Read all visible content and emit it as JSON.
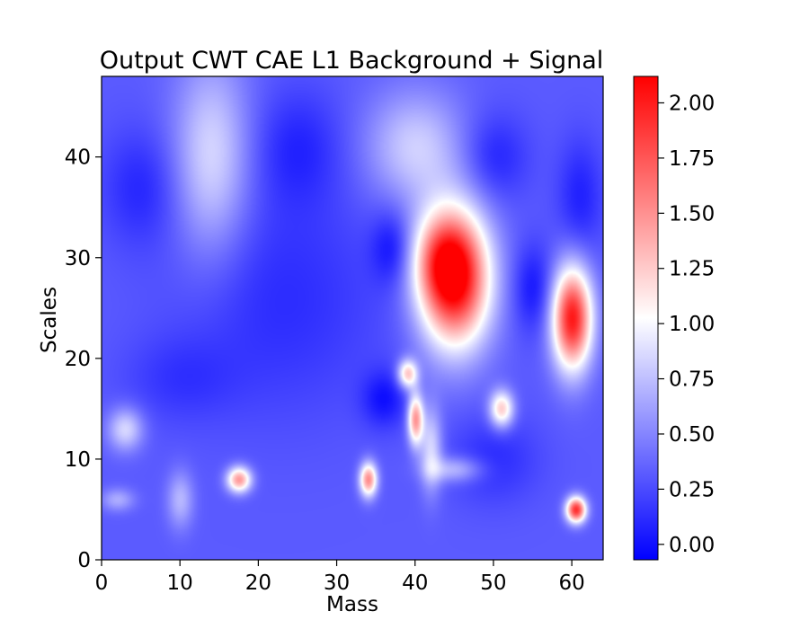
{
  "chart_data": {
    "type": "heatmap",
    "title": "Output CWT CAE L1 Background + Signal",
    "xlabel": "Mass",
    "ylabel": "Scales",
    "xlim": [
      0,
      64
    ],
    "ylim": [
      0,
      48
    ],
    "x_ticks": [
      0,
      10,
      20,
      30,
      40,
      50,
      60
    ],
    "y_ticks": [
      0,
      10,
      20,
      30,
      40
    ],
    "colormap": "bwr",
    "colormap_stops": [
      "#0000ff",
      "#ffffff",
      "#ff0000"
    ],
    "color_range": [
      -0.07,
      2.12
    ],
    "colorbar_ticks": [
      "0.00",
      "0.25",
      "0.50",
      "0.75",
      "1.00",
      "1.25",
      "1.50",
      "1.75",
      "2.00"
    ],
    "baseline_value": 0.32,
    "features": [
      {
        "x": 45,
        "y": 28,
        "sx": 3.2,
        "sy": 4.8,
        "value": 1.85
      },
      {
        "x": 43,
        "y": 30,
        "sx": 2.5,
        "sy": 3.0,
        "value": 0.5
      },
      {
        "x": 60,
        "y": 24,
        "sx": 1.8,
        "sy": 3.6,
        "value": 1.7
      },
      {
        "x": 60.5,
        "y": 5,
        "sx": 0.9,
        "sy": 0.9,
        "value": 1.6
      },
      {
        "x": 40,
        "y": 14,
        "sx": 0.7,
        "sy": 1.8,
        "value": 1.15
      },
      {
        "x": 39,
        "y": 18.5,
        "sx": 0.9,
        "sy": 1.0,
        "value": 0.95
      },
      {
        "x": 34,
        "y": 8,
        "sx": 0.8,
        "sy": 1.2,
        "value": 1.2
      },
      {
        "x": 17.5,
        "y": 8,
        "sx": 1.1,
        "sy": 0.9,
        "value": 1.15
      },
      {
        "x": 51,
        "y": 15,
        "sx": 1.1,
        "sy": 1.3,
        "value": 0.95
      },
      {
        "x": 14,
        "y": 40,
        "sx": 3.5,
        "sy": 7.0,
        "value": 0.55
      },
      {
        "x": 40,
        "y": 41,
        "sx": 4.5,
        "sy": 4.0,
        "value": 0.5
      },
      {
        "x": 3,
        "y": 13,
        "sx": 1.6,
        "sy": 1.5,
        "value": 0.55
      },
      {
        "x": 42,
        "y": 11,
        "sx": 1.0,
        "sy": 3.0,
        "value": 0.55
      },
      {
        "x": 45,
        "y": 9,
        "sx": 2.5,
        "sy": 0.9,
        "value": 0.45
      },
      {
        "x": 10,
        "y": 6,
        "sx": 1.2,
        "sy": 2.0,
        "value": 0.4
      },
      {
        "x": 2,
        "y": 6,
        "sx": 1.5,
        "sy": 0.8,
        "value": 0.35
      },
      {
        "x": 23,
        "y": 26,
        "sx": 9.0,
        "sy": 8.0,
        "value": -0.2
      },
      {
        "x": 5,
        "y": 37,
        "sx": 3.5,
        "sy": 4.0,
        "value": -0.22
      },
      {
        "x": 25,
        "y": 41,
        "sx": 4.0,
        "sy": 4.0,
        "value": -0.22
      },
      {
        "x": 37,
        "y": 31,
        "sx": 1.8,
        "sy": 2.5,
        "value": -0.3
      },
      {
        "x": 50,
        "y": 40,
        "sx": 3.0,
        "sy": 3.0,
        "value": -0.25
      },
      {
        "x": 55,
        "y": 27,
        "sx": 1.8,
        "sy": 3.0,
        "value": -0.3
      },
      {
        "x": 36,
        "y": 16,
        "sx": 2.0,
        "sy": 2.0,
        "value": -0.3
      },
      {
        "x": 61,
        "y": 36,
        "sx": 2.0,
        "sy": 4.0,
        "value": -0.25
      },
      {
        "x": 50,
        "y": 10,
        "sx": 4.0,
        "sy": 3.0,
        "value": -0.2
      },
      {
        "x": 10,
        "y": 18,
        "sx": 5.0,
        "sy": 3.0,
        "value": -0.15
      }
    ]
  }
}
